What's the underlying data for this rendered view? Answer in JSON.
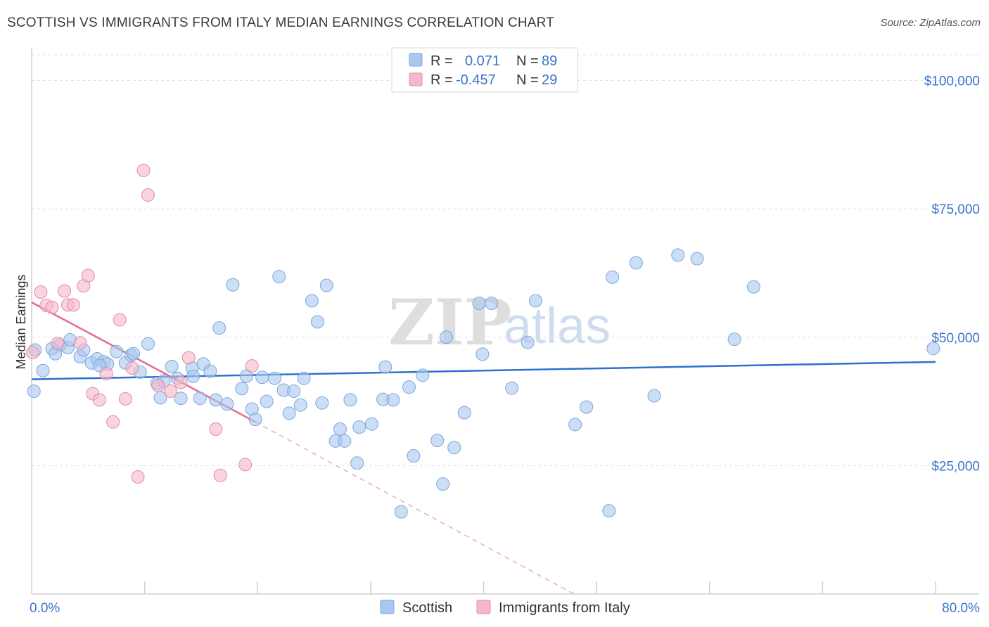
{
  "header": {
    "title": "SCOTTISH VS IMMIGRANTS FROM ITALY MEDIAN EARNINGS CORRELATION CHART",
    "source": "Source: ZipAtlas.com"
  },
  "watermark": {
    "zip": "ZIP",
    "atlas": "atlas"
  },
  "legend": {
    "r_label": "R =",
    "n_label": "N =",
    "rows": [
      {
        "r": "0.071",
        "n": "89",
        "color": "#a9c8f0"
      },
      {
        "r": "-0.457",
        "n": "29",
        "color": "#f5b8ca"
      }
    ]
  },
  "chart_data": {
    "type": "scatter",
    "xlabel": "",
    "ylabel": "Median Earnings",
    "xlim": [
      0,
      80
    ],
    "ylim": [
      0,
      105000
    ],
    "x_tick_labels": [
      {
        "value": 0,
        "label": "0.0%"
      },
      {
        "value": 80,
        "label": "80.0%"
      }
    ],
    "y_tick_labels": [
      {
        "value": 25000,
        "label": "$25,000"
      },
      {
        "value": 50000,
        "label": "$50,000"
      },
      {
        "value": 75000,
        "label": "$75,000"
      },
      {
        "value": 100000,
        "label": "$100,000"
      }
    ],
    "grid": true,
    "legend_position": "top-center",
    "series": [
      {
        "name": "Scottish",
        "color": "#a9c8f0",
        "stroke": "#7aa6dc",
        "trend": {
          "x": [
            0,
            80
          ],
          "y": [
            41800,
            45200
          ],
          "color": "#2f6fd0"
        },
        "points": [
          [
            0.2,
            39500
          ],
          [
            1.0,
            43500
          ],
          [
            1.8,
            47800
          ],
          [
            2.5,
            48500
          ],
          [
            3.2,
            48000
          ],
          [
            3.4,
            49500
          ],
          [
            4.3,
            46200
          ],
          [
            4.6,
            47500
          ],
          [
            5.3,
            45000
          ],
          [
            5.8,
            45800
          ],
          [
            6.4,
            45200
          ],
          [
            6.7,
            44800
          ],
          [
            7.5,
            47200
          ],
          [
            8.3,
            45000
          ],
          [
            8.8,
            46500
          ],
          [
            9.0,
            46800
          ],
          [
            9.6,
            43200
          ],
          [
            10.3,
            48700
          ],
          [
            11.1,
            41000
          ],
          [
            11.4,
            38200
          ],
          [
            11.7,
            41500
          ],
          [
            12.4,
            44300
          ],
          [
            12.9,
            42000
          ],
          [
            13.2,
            38100
          ],
          [
            14.2,
            44000
          ],
          [
            14.3,
            42400
          ],
          [
            14.9,
            38100
          ],
          [
            15.2,
            44800
          ],
          [
            15.8,
            43400
          ],
          [
            16.3,
            37800
          ],
          [
            16.6,
            51800
          ],
          [
            17.3,
            37000
          ],
          [
            17.8,
            60200
          ],
          [
            18.6,
            40000
          ],
          [
            19.0,
            42400
          ],
          [
            19.5,
            36000
          ],
          [
            19.8,
            34000
          ],
          [
            20.4,
            42200
          ],
          [
            20.8,
            37500
          ],
          [
            21.5,
            42000
          ],
          [
            21.9,
            61800
          ],
          [
            22.3,
            39700
          ],
          [
            22.8,
            35200
          ],
          [
            23.2,
            39500
          ],
          [
            23.8,
            36800
          ],
          [
            24.1,
            42000
          ],
          [
            24.8,
            57100
          ],
          [
            25.3,
            53000
          ],
          [
            25.7,
            37200
          ],
          [
            26.1,
            60100
          ],
          [
            26.9,
            29800
          ],
          [
            27.3,
            32100
          ],
          [
            27.7,
            29800
          ],
          [
            28.2,
            37800
          ],
          [
            28.8,
            25500
          ],
          [
            29.0,
            32500
          ],
          [
            30.1,
            33100
          ],
          [
            31.1,
            37900
          ],
          [
            31.3,
            44200
          ],
          [
            32.0,
            37800
          ],
          [
            32.7,
            16000
          ],
          [
            33.4,
            40300
          ],
          [
            33.8,
            26900
          ],
          [
            34.6,
            42600
          ],
          [
            35.9,
            29900
          ],
          [
            36.4,
            21400
          ],
          [
            36.7,
            50000
          ],
          [
            37.4,
            28500
          ],
          [
            38.3,
            35300
          ],
          [
            39.6,
            56600
          ],
          [
            39.9,
            46700
          ],
          [
            40.7,
            56600
          ],
          [
            42.5,
            40100
          ],
          [
            43.9,
            49000
          ],
          [
            44.6,
            57100
          ],
          [
            48.1,
            33000
          ],
          [
            49.1,
            36400
          ],
          [
            51.1,
            16200
          ],
          [
            51.4,
            61700
          ],
          [
            53.5,
            64500
          ],
          [
            55.1,
            38600
          ],
          [
            57.2,
            66000
          ],
          [
            58.9,
            65300
          ],
          [
            62.2,
            49600
          ],
          [
            63.9,
            59800
          ],
          [
            79.8,
            47800
          ],
          [
            0.3,
            47500
          ],
          [
            2.1,
            46800
          ],
          [
            6.0,
            44500
          ]
        ]
      },
      {
        "name": "Immigrants from Italy",
        "color": "#f5b8ca",
        "stroke": "#e38aa6",
        "trend": {
          "x": [
            0,
            19.8
          ],
          "y": [
            56800,
            33500
          ],
          "color": "#e36a93"
        },
        "trend_dashed": {
          "x": [
            19.8,
            48
          ],
          "y": [
            33500,
            0
          ],
          "color": "#e8a0b8"
        },
        "points": [
          [
            0.1,
            47000
          ],
          [
            0.8,
            58800
          ],
          [
            1.3,
            56200
          ],
          [
            1.8,
            55800
          ],
          [
            2.3,
            48800
          ],
          [
            2.9,
            59000
          ],
          [
            3.2,
            56300
          ],
          [
            3.7,
            56300
          ],
          [
            4.3,
            48900
          ],
          [
            4.6,
            60000
          ],
          [
            5.0,
            62000
          ],
          [
            5.4,
            39000
          ],
          [
            6.0,
            37800
          ],
          [
            6.6,
            42900
          ],
          [
            7.2,
            33500
          ],
          [
            7.8,
            53400
          ],
          [
            8.3,
            38000
          ],
          [
            8.9,
            44000
          ],
          [
            9.4,
            22800
          ],
          [
            9.9,
            82500
          ],
          [
            10.3,
            77700
          ],
          [
            11.2,
            40600
          ],
          [
            12.3,
            39500
          ],
          [
            13.2,
            41200
          ],
          [
            13.9,
            46000
          ],
          [
            16.3,
            32100
          ],
          [
            16.7,
            23100
          ],
          [
            18.9,
            25200
          ],
          [
            19.5,
            44400
          ]
        ]
      }
    ]
  }
}
